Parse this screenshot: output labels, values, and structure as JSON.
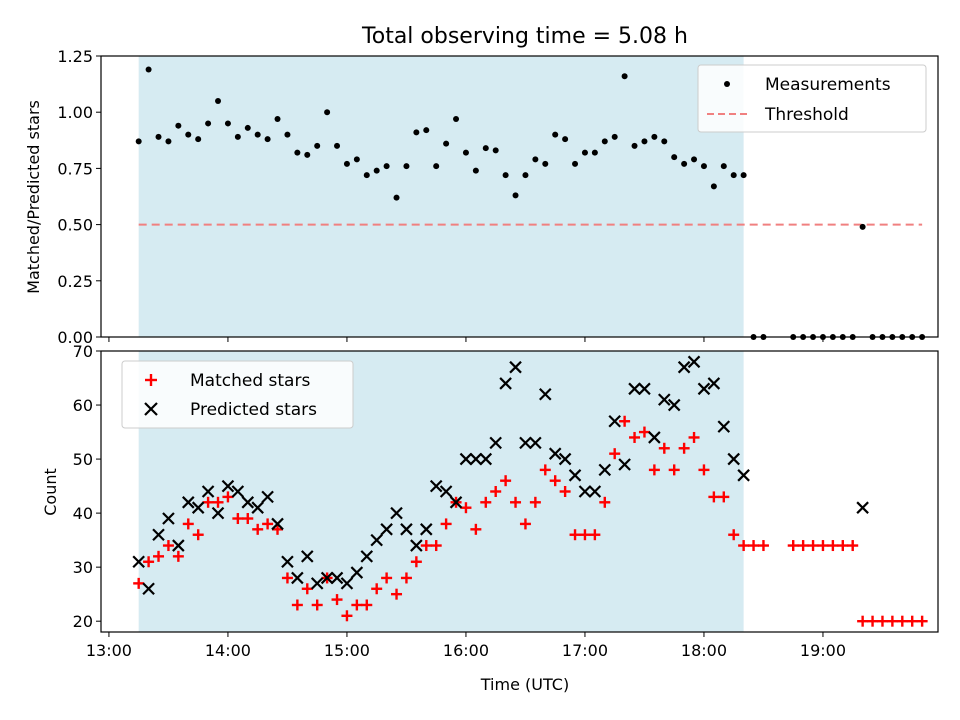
{
  "chart_data": {
    "type": "scatter",
    "title": "Total observing time = 5.08 h",
    "x_unit": "time (HH:MM UTC)",
    "x_range": [
      "12:56",
      "19:58"
    ],
    "x_ticks": [
      "13:00",
      "14:00",
      "15:00",
      "16:00",
      "17:00",
      "18:00",
      "19:00"
    ],
    "xlabel": "Time (UTC)",
    "shaded_interval": {
      "start": "13:15",
      "end": "18:20",
      "color": "#add8e6"
    },
    "top_panel": {
      "ylabel": "Matched/Predicted stars",
      "ylim": [
        0,
        1.25
      ],
      "y_ticks": [
        "0.00",
        "0.25",
        "0.50",
        "0.75",
        "1.00",
        "1.25"
      ],
      "legend": {
        "position": "top-right",
        "entries": [
          "Measurements",
          "Threshold"
        ]
      },
      "series": [
        {
          "name": "Measurements",
          "type": "scatter",
          "color": "#000000",
          "points": [
            [
              "13:15",
              0.87
            ],
            [
              "13:20",
              1.19
            ],
            [
              "13:25",
              0.89
            ],
            [
              "13:30",
              0.87
            ],
            [
              "13:35",
              0.94
            ],
            [
              "13:40",
              0.9
            ],
            [
              "13:45",
              0.88
            ],
            [
              "13:50",
              0.95
            ],
            [
              "13:55",
              1.05
            ],
            [
              "14:00",
              0.95
            ],
            [
              "14:05",
              0.89
            ],
            [
              "14:10",
              0.93
            ],
            [
              "14:15",
              0.9
            ],
            [
              "14:20",
              0.88
            ],
            [
              "14:25",
              0.97
            ],
            [
              "14:30",
              0.9
            ],
            [
              "14:35",
              0.82
            ],
            [
              "14:40",
              0.81
            ],
            [
              "14:45",
              0.85
            ],
            [
              "14:50",
              1.0
            ],
            [
              "14:55",
              0.85
            ],
            [
              "15:00",
              0.77
            ],
            [
              "15:05",
              0.79
            ],
            [
              "15:10",
              0.72
            ],
            [
              "15:15",
              0.74
            ],
            [
              "15:20",
              0.76
            ],
            [
              "15:25",
              0.62
            ],
            [
              "15:30",
              0.76
            ],
            [
              "15:35",
              0.91
            ],
            [
              "15:40",
              0.92
            ],
            [
              "15:45",
              0.76
            ],
            [
              "15:50",
              0.86
            ],
            [
              "15:55",
              0.97
            ],
            [
              "16:00",
              0.82
            ],
            [
              "16:05",
              0.74
            ],
            [
              "16:10",
              0.84
            ],
            [
              "16:15",
              0.83
            ],
            [
              "16:20",
              0.72
            ],
            [
              "16:25",
              0.63
            ],
            [
              "16:30",
              0.72
            ],
            [
              "16:35",
              0.79
            ],
            [
              "16:40",
              0.77
            ],
            [
              "16:45",
              0.9
            ],
            [
              "16:50",
              0.88
            ],
            [
              "16:55",
              0.77
            ],
            [
              "17:00",
              0.82
            ],
            [
              "17:05",
              0.82
            ],
            [
              "17:10",
              0.87
            ],
            [
              "17:15",
              0.89
            ],
            [
              "17:20",
              1.16
            ],
            [
              "17:25",
              0.85
            ],
            [
              "17:30",
              0.87
            ],
            [
              "17:35",
              0.89
            ],
            [
              "17:40",
              0.87
            ],
            [
              "17:45",
              0.8
            ],
            [
              "17:50",
              0.77
            ],
            [
              "17:55",
              0.79
            ],
            [
              "18:00",
              0.76
            ],
            [
              "18:05",
              0.67
            ],
            [
              "18:10",
              0.76
            ],
            [
              "18:15",
              0.72
            ],
            [
              "18:20",
              0.72
            ],
            [
              "18:25",
              0.0
            ],
            [
              "18:30",
              0.0
            ],
            [
              "18:45",
              0.0
            ],
            [
              "18:50",
              0.0
            ],
            [
              "18:55",
              0.0
            ],
            [
              "19:00",
              0.0
            ],
            [
              "19:05",
              0.0
            ],
            [
              "19:10",
              0.0
            ],
            [
              "19:15",
              0.0
            ],
            [
              "19:20",
              0.49
            ],
            [
              "19:25",
              0.0
            ],
            [
              "19:30",
              0.0
            ],
            [
              "19:35",
              0.0
            ],
            [
              "19:40",
              0.0
            ],
            [
              "19:45",
              0.0
            ],
            [
              "19:50",
              0.0
            ]
          ]
        },
        {
          "name": "Threshold",
          "type": "line",
          "style": "dashed",
          "color": "#f08080",
          "x": [
            "13:15",
            "19:50"
          ],
          "y": [
            0.5,
            0.5
          ]
        }
      ]
    },
    "bottom_panel": {
      "ylabel": "Count",
      "ylim": [
        18,
        70
      ],
      "y_ticks": [
        "20",
        "30",
        "40",
        "50",
        "60",
        "70"
      ],
      "legend": {
        "position": "top-left",
        "entries": [
          "Matched stars",
          "Predicted stars"
        ]
      },
      "series": [
        {
          "name": "Matched stars",
          "marker": "+",
          "color": "#ff0000",
          "points": [
            [
              "13:15",
              27
            ],
            [
              "13:20",
              31
            ],
            [
              "13:25",
              32
            ],
            [
              "13:30",
              34
            ],
            [
              "13:35",
              32
            ],
            [
              "13:40",
              38
            ],
            [
              "13:45",
              36
            ],
            [
              "13:50",
              42
            ],
            [
              "13:55",
              42
            ],
            [
              "14:00",
              43
            ],
            [
              "14:05",
              39
            ],
            [
              "14:10",
              39
            ],
            [
              "14:15",
              37
            ],
            [
              "14:20",
              38
            ],
            [
              "14:25",
              37
            ],
            [
              "14:30",
              28
            ],
            [
              "14:35",
              23
            ],
            [
              "14:40",
              26
            ],
            [
              "14:45",
              23
            ],
            [
              "14:50",
              28
            ],
            [
              "14:55",
              24
            ],
            [
              "15:00",
              21
            ],
            [
              "15:05",
              23
            ],
            [
              "15:10",
              23
            ],
            [
              "15:15",
              26
            ],
            [
              "15:20",
              28
            ],
            [
              "15:25",
              25
            ],
            [
              "15:30",
              28
            ],
            [
              "15:35",
              31
            ],
            [
              "15:40",
              34
            ],
            [
              "15:45",
              34
            ],
            [
              "15:50",
              38
            ],
            [
              "15:55",
              42
            ],
            [
              "16:00",
              41
            ],
            [
              "16:05",
              37
            ],
            [
              "16:10",
              42
            ],
            [
              "16:15",
              44
            ],
            [
              "16:20",
              46
            ],
            [
              "16:25",
              42
            ],
            [
              "16:30",
              38
            ],
            [
              "16:35",
              42
            ],
            [
              "16:40",
              48
            ],
            [
              "16:45",
              46
            ],
            [
              "16:50",
              44
            ],
            [
              "16:55",
              36
            ],
            [
              "17:00",
              36
            ],
            [
              "17:05",
              36
            ],
            [
              "17:10",
              42
            ],
            [
              "17:15",
              51
            ],
            [
              "17:20",
              57
            ],
            [
              "17:25",
              54
            ],
            [
              "17:30",
              55
            ],
            [
              "17:35",
              48
            ],
            [
              "17:40",
              52
            ],
            [
              "17:45",
              48
            ],
            [
              "17:50",
              52
            ],
            [
              "17:55",
              54
            ],
            [
              "18:00",
              48
            ],
            [
              "18:05",
              43
            ],
            [
              "18:10",
              43
            ],
            [
              "18:15",
              36
            ],
            [
              "18:20",
              34
            ],
            [
              "18:25",
              34
            ],
            [
              "18:30",
              34
            ],
            [
              "18:45",
              34
            ],
            [
              "18:50",
              34
            ],
            [
              "18:55",
              34
            ],
            [
              "19:00",
              34
            ],
            [
              "19:05",
              34
            ],
            [
              "19:10",
              34
            ],
            [
              "19:15",
              34
            ],
            [
              "19:20",
              20
            ],
            [
              "19:25",
              20
            ],
            [
              "19:30",
              20
            ],
            [
              "19:35",
              20
            ],
            [
              "19:40",
              20
            ],
            [
              "19:45",
              20
            ],
            [
              "19:50",
              20
            ]
          ]
        },
        {
          "name": "Predicted stars",
          "marker": "x",
          "color": "#000000",
          "points": [
            [
              "13:15",
              31
            ],
            [
              "13:20",
              26
            ],
            [
              "13:25",
              36
            ],
            [
              "13:30",
              39
            ],
            [
              "13:35",
              34
            ],
            [
              "13:40",
              42
            ],
            [
              "13:45",
              41
            ],
            [
              "13:50",
              44
            ],
            [
              "13:55",
              40
            ],
            [
              "14:00",
              45
            ],
            [
              "14:05",
              44
            ],
            [
              "14:10",
              42
            ],
            [
              "14:15",
              41
            ],
            [
              "14:20",
              43
            ],
            [
              "14:25",
              38
            ],
            [
              "14:30",
              31
            ],
            [
              "14:35",
              28
            ],
            [
              "14:40",
              32
            ],
            [
              "14:45",
              27
            ],
            [
              "14:50",
              28
            ],
            [
              "14:55",
              28
            ],
            [
              "15:00",
              27
            ],
            [
              "15:05",
              29
            ],
            [
              "15:10",
              32
            ],
            [
              "15:15",
              35
            ],
            [
              "15:20",
              37
            ],
            [
              "15:25",
              40
            ],
            [
              "15:30",
              37
            ],
            [
              "15:35",
              34
            ],
            [
              "15:40",
              37
            ],
            [
              "15:45",
              45
            ],
            [
              "15:50",
              44
            ],
            [
              "15:55",
              42
            ],
            [
              "16:00",
              50
            ],
            [
              "16:05",
              50
            ],
            [
              "16:10",
              50
            ],
            [
              "16:15",
              53
            ],
            [
              "16:20",
              64
            ],
            [
              "16:25",
              67
            ],
            [
              "16:30",
              53
            ],
            [
              "16:35",
              53
            ],
            [
              "16:40",
              62
            ],
            [
              "16:45",
              51
            ],
            [
              "16:50",
              50
            ],
            [
              "16:55",
              47
            ],
            [
              "17:00",
              44
            ],
            [
              "17:05",
              44
            ],
            [
              "17:10",
              48
            ],
            [
              "17:15",
              57
            ],
            [
              "17:20",
              49
            ],
            [
              "17:25",
              63
            ],
            [
              "17:30",
              63
            ],
            [
              "17:35",
              54
            ],
            [
              "17:40",
              61
            ],
            [
              "17:45",
              60
            ],
            [
              "17:50",
              67
            ],
            [
              "17:55",
              68
            ],
            [
              "18:00",
              63
            ],
            [
              "18:05",
              64
            ],
            [
              "18:10",
              56
            ],
            [
              "18:15",
              50
            ],
            [
              "18:20",
              47
            ],
            [
              "19:20",
              41
            ]
          ]
        }
      ]
    }
  }
}
